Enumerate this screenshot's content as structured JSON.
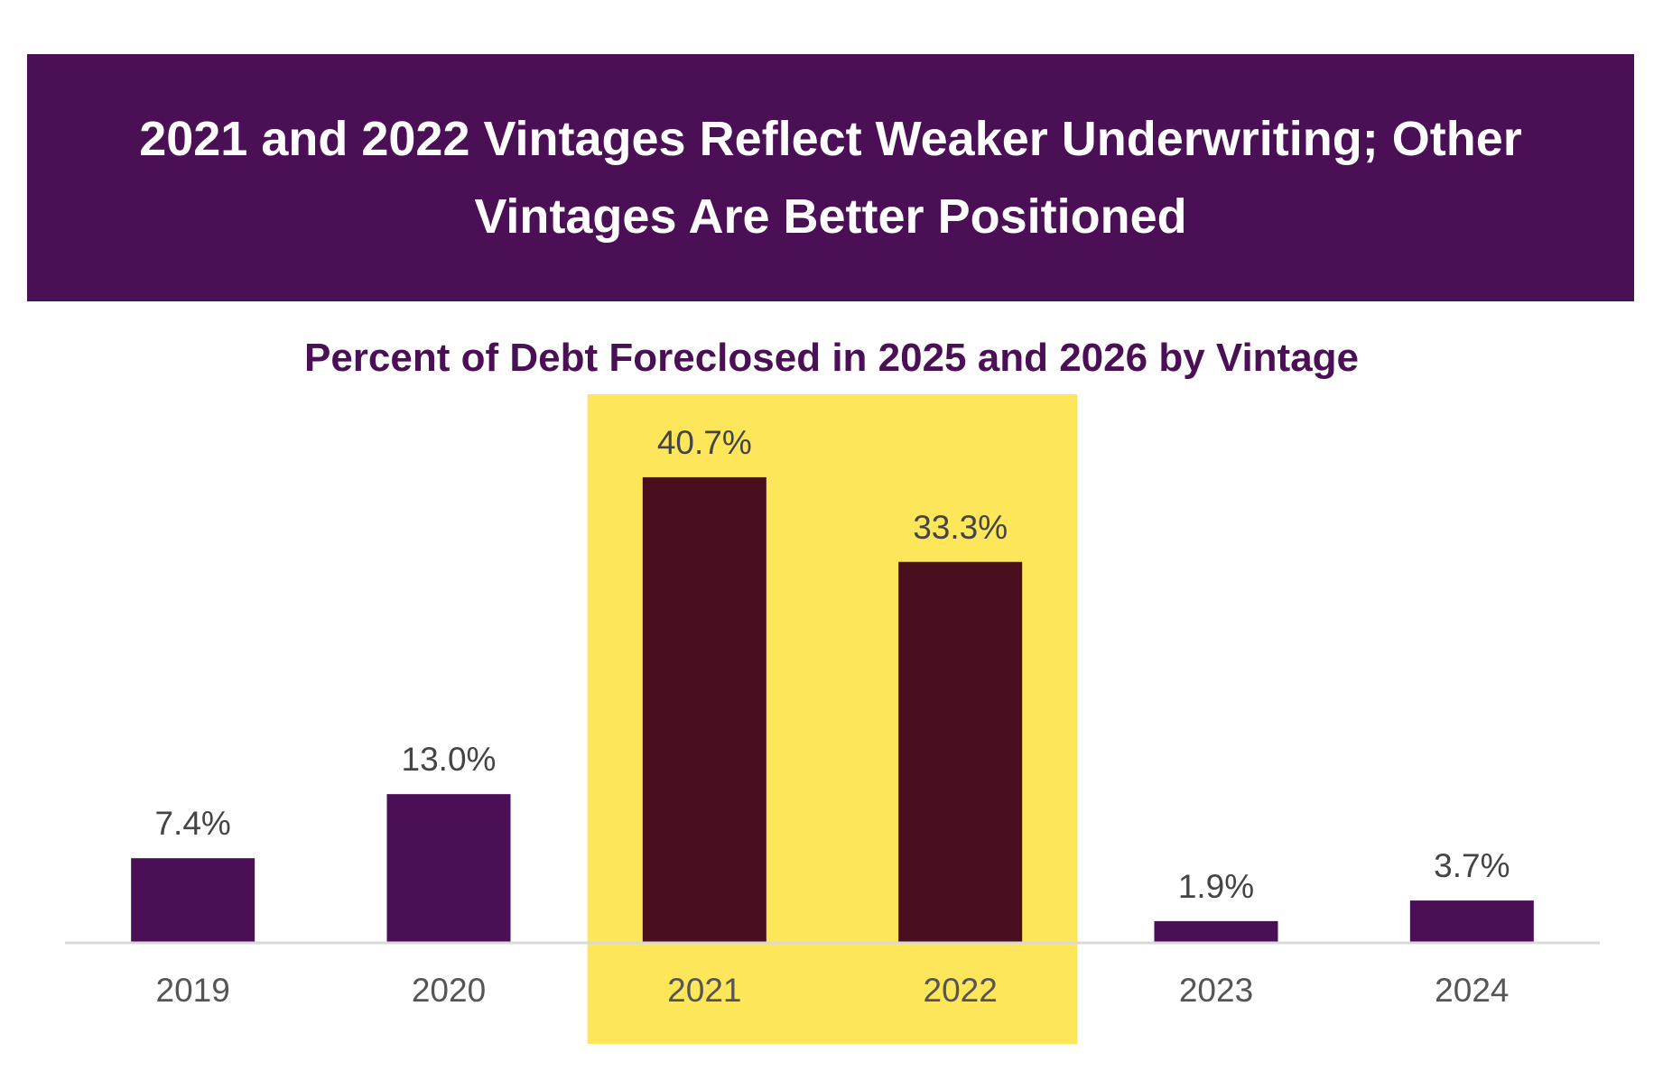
{
  "header": {
    "title": "2021 and 2022 Vintages Reflect Weaker Underwriting; Other Vintages Are Better Positioned"
  },
  "chart_data": {
    "type": "bar",
    "title": "Percent of Debt Foreclosed in 2025 and 2026 by Vintage",
    "xlabel": "",
    "ylabel": "",
    "categories": [
      "2019",
      "2020",
      "2021",
      "2022",
      "2023",
      "2024"
    ],
    "values": [
      7.4,
      13.0,
      40.7,
      33.3,
      1.9,
      3.7
    ],
    "data_labels": [
      "7.4%",
      "13.0%",
      "40.7%",
      "33.3%",
      "1.9%",
      "3.7%"
    ],
    "ylim": [
      0,
      45
    ],
    "grid": false,
    "legend": "none",
    "highlighted_categories": [
      "2021",
      "2022"
    ],
    "colors": {
      "bar": "#4a0f55",
      "highlighted_bar": "#4a0f1f",
      "highlight_band": "#fde65a",
      "banner": "#4a0f55",
      "axis": "#d9d9d9"
    }
  }
}
